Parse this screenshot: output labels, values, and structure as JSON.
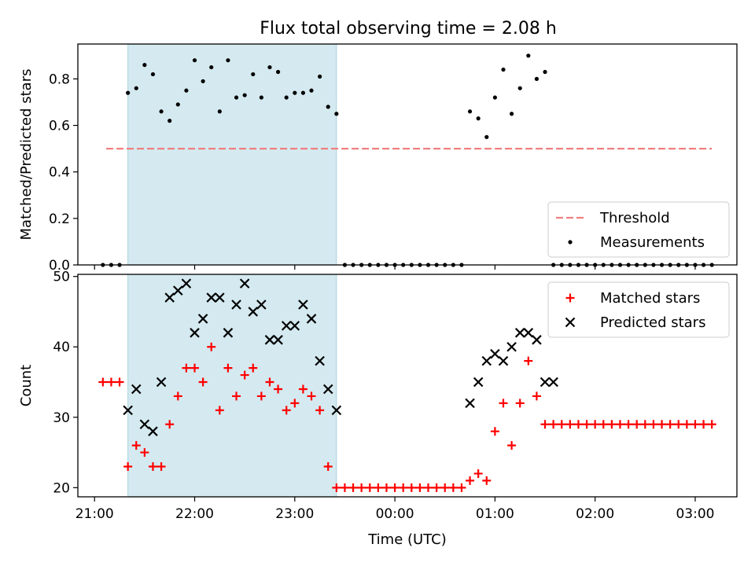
{
  "title": "Flux total observing time = 2.08 h",
  "chart_data": [
    {
      "type": "scatter",
      "ylabel": "Matched/Predicted stars",
      "xlabel": "",
      "xlim": [
        "20:50",
        "03:25"
      ],
      "ylim": [
        0,
        0.95
      ],
      "yticks": [
        0.0,
        0.2,
        0.4,
        0.6,
        0.8
      ],
      "ytick_labels": [
        "0.0",
        "0.2",
        "0.4",
        "0.6",
        "0.8"
      ],
      "shaded_interval": {
        "x": [
          "21:20",
          "23:25"
        ],
        "color": "#d4eaf0"
      },
      "grid": false,
      "legend_position": "lower-right",
      "series": [
        {
          "name": "Threshold",
          "style": "dashed-line",
          "color": "#f08080",
          "x": [
            "21:07",
            "03:10"
          ],
          "y": [
            0.5,
            0.5
          ]
        },
        {
          "name": "Measurements",
          "style": "dot",
          "color": "#000000",
          "x": [
            "21:05",
            "21:10",
            "21:15",
            "21:20",
            "21:25",
            "21:30",
            "21:35",
            "21:40",
            "21:45",
            "21:50",
            "21:55",
            "22:00",
            "22:05",
            "22:10",
            "22:15",
            "22:20",
            "22:25",
            "22:30",
            "22:35",
            "22:40",
            "22:45",
            "22:50",
            "22:55",
            "23:00",
            "23:05",
            "23:10",
            "23:15",
            "23:20",
            "23:25",
            "23:30",
            "23:35",
            "23:40",
            "23:45",
            "23:50",
            "23:55",
            "00:00",
            "00:05",
            "00:10",
            "00:15",
            "00:20",
            "00:25",
            "00:30",
            "00:35",
            "00:40",
            "00:45",
            "00:50",
            "00:55",
            "01:00",
            "01:05",
            "01:10",
            "01:15",
            "01:20",
            "01:25",
            "01:30",
            "01:35",
            "01:40",
            "01:45",
            "01:50",
            "01:55",
            "02:00",
            "02:05",
            "02:10",
            "02:15",
            "02:20",
            "02:25",
            "02:30",
            "02:35",
            "02:40",
            "02:45",
            "02:50",
            "02:55",
            "03:00",
            "03:05",
            "03:10"
          ],
          "y": [
            0,
            0,
            0,
            0.74,
            0.76,
            0.86,
            0.82,
            0.66,
            0.62,
            0.69,
            0.75,
            0.88,
            0.79,
            0.85,
            0.66,
            0.88,
            0.72,
            0.73,
            0.82,
            0.72,
            0.85,
            0.83,
            0.72,
            0.74,
            0.74,
            0.75,
            0.81,
            0.68,
            0.65,
            0,
            0,
            0,
            0,
            0,
            0,
            0,
            0,
            0,
            0,
            0,
            0,
            0,
            0,
            0,
            0.66,
            0.63,
            0.55,
            0.72,
            0.84,
            0.65,
            0.76,
            0.9,
            0.8,
            0.83,
            0,
            0,
            0,
            0,
            0,
            0,
            0,
            0,
            0,
            0,
            0,
            0,
            0,
            0,
            0,
            0,
            0,
            0,
            0,
            0
          ]
        }
      ]
    },
    {
      "type": "scatter",
      "ylabel": "Count",
      "xlabel": "Time (UTC)",
      "xlim": [
        "20:50",
        "03:25"
      ],
      "ylim": [
        18.7,
        50.3
      ],
      "yticks": [
        20,
        30,
        40,
        50
      ],
      "ytick_labels": [
        "20",
        "30",
        "40",
        "50"
      ],
      "xticks": [
        "21:00",
        "22:00",
        "23:00",
        "00:00",
        "01:00",
        "02:00",
        "03:00"
      ],
      "xtick_labels": [
        "21:00",
        "22:00",
        "23:00",
        "00:00",
        "01:00",
        "02:00",
        "03:00"
      ],
      "shaded_interval": {
        "x": [
          "21:20",
          "23:25"
        ],
        "color": "#d4eaf0"
      },
      "grid": false,
      "legend_position": "upper-right",
      "series": [
        {
          "name": "Matched stars",
          "marker": "plus",
          "color": "#ff0000",
          "x": [
            "21:05",
            "21:10",
            "21:15",
            "21:20",
            "21:25",
            "21:30",
            "21:35",
            "21:40",
            "21:45",
            "21:50",
            "21:55",
            "22:00",
            "22:05",
            "22:10",
            "22:15",
            "22:20",
            "22:25",
            "22:30",
            "22:35",
            "22:40",
            "22:45",
            "22:50",
            "22:55",
            "23:00",
            "23:05",
            "23:10",
            "23:15",
            "23:20",
            "23:25",
            "23:30",
            "23:35",
            "23:40",
            "23:45",
            "23:50",
            "23:55",
            "00:00",
            "00:05",
            "00:10",
            "00:15",
            "00:20",
            "00:25",
            "00:30",
            "00:35",
            "00:40",
            "00:45",
            "00:50",
            "00:55",
            "01:00",
            "01:05",
            "01:10",
            "01:15",
            "01:20",
            "01:25",
            "01:30",
            "01:35",
            "01:40",
            "01:45",
            "01:50",
            "01:55",
            "02:00",
            "02:05",
            "02:10",
            "02:15",
            "02:20",
            "02:25",
            "02:30",
            "02:35",
            "02:40",
            "02:45",
            "02:50",
            "02:55",
            "03:00",
            "03:05",
            "03:10"
          ],
          "y": [
            35,
            35,
            35,
            23,
            26,
            25,
            23,
            23,
            29,
            33,
            37,
            37,
            35,
            40,
            31,
            37,
            33,
            36,
            37,
            33,
            35,
            34,
            31,
            32,
            34,
            33,
            31,
            23,
            20,
            20,
            20,
            20,
            20,
            20,
            20,
            20,
            20,
            20,
            20,
            20,
            20,
            20,
            20,
            20,
            21,
            22,
            21,
            28,
            32,
            26,
            32,
            38,
            33,
            29,
            29,
            29,
            29,
            29,
            29,
            29,
            29,
            29,
            29,
            29,
            29,
            29,
            29,
            29,
            29,
            29,
            29,
            29,
            29,
            29
          ]
        },
        {
          "name": "Predicted stars",
          "marker": "x",
          "color": "#000000",
          "x": [
            "21:20",
            "21:25",
            "21:30",
            "21:35",
            "21:40",
            "21:45",
            "21:50",
            "21:55",
            "22:00",
            "22:05",
            "22:10",
            "22:15",
            "22:20",
            "22:25",
            "22:30",
            "22:35",
            "22:40",
            "22:45",
            "22:50",
            "22:55",
            "23:00",
            "23:05",
            "23:10",
            "23:15",
            "23:20",
            "23:25",
            "00:45",
            "00:50",
            "00:55",
            "01:00",
            "01:05",
            "01:10",
            "01:15",
            "01:20",
            "01:25",
            "01:30",
            "01:35"
          ],
          "y": [
            31,
            34,
            29,
            28,
            35,
            47,
            48,
            49,
            42,
            44,
            47,
            47,
            42,
            46,
            49,
            45,
            46,
            41,
            41,
            43,
            43,
            46,
            44,
            38,
            34,
            31,
            32,
            35,
            38,
            39,
            38,
            40,
            42,
            42,
            41,
            35,
            35
          ]
        }
      ]
    }
  ]
}
